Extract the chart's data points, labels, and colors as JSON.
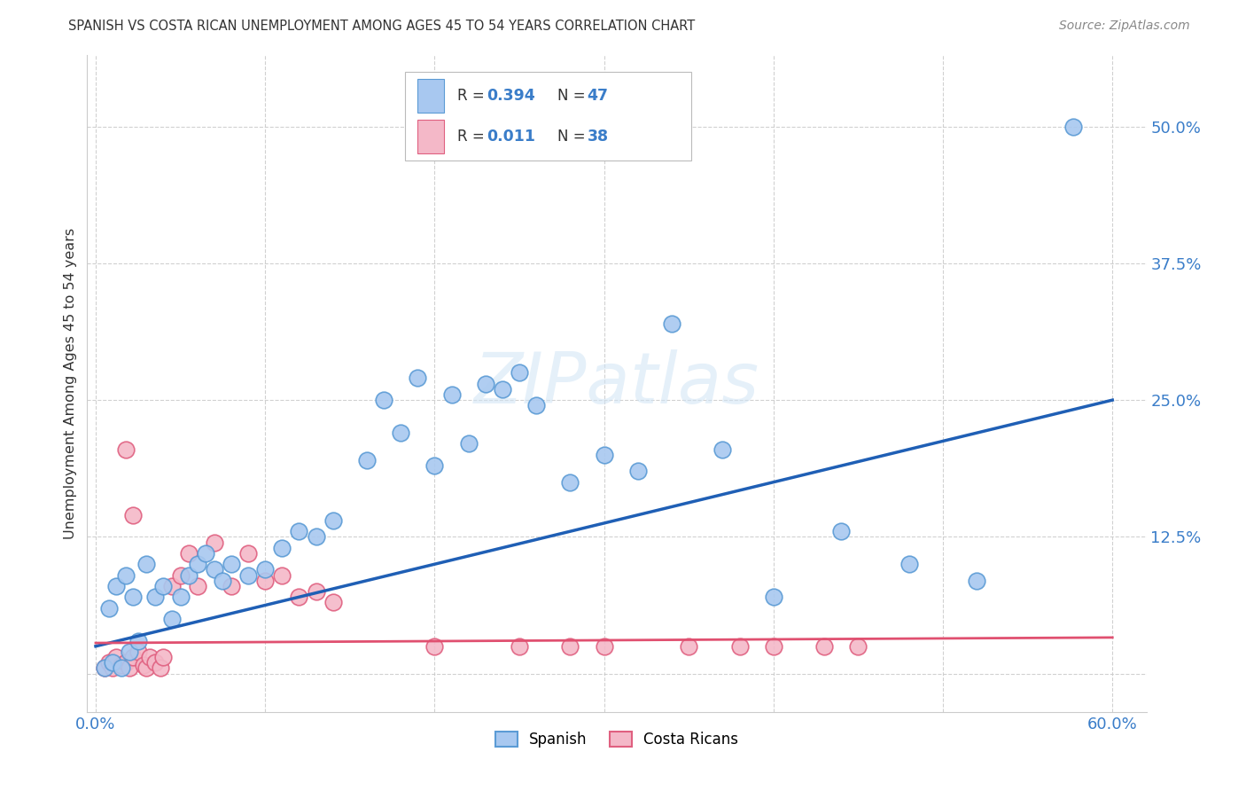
{
  "title": "SPANISH VS COSTA RICAN UNEMPLOYMENT AMONG AGES 45 TO 54 YEARS CORRELATION CHART",
  "source": "Source: ZipAtlas.com",
  "ylabel": "Unemployment Among Ages 45 to 54 years",
  "xlim": [
    -0.005,
    0.62
  ],
  "ylim": [
    -0.035,
    0.565
  ],
  "xticks": [
    0.0,
    0.1,
    0.2,
    0.3,
    0.4,
    0.5,
    0.6
  ],
  "xticklabels": [
    "0.0%",
    "",
    "",
    "",
    "",
    "",
    "60.0%"
  ],
  "ytick_positions": [
    0.0,
    0.125,
    0.25,
    0.375,
    0.5
  ],
  "ytick_labels": [
    "",
    "12.5%",
    "25.0%",
    "37.5%",
    "50.0%"
  ],
  "spanish_color": "#a8c8f0",
  "spanish_edge": "#5b9bd5",
  "costa_rican_color": "#f4b8c8",
  "costa_rican_edge": "#e06080",
  "trend_spanish_color": "#1f5fb5",
  "trend_cr_color": "#e05070",
  "legend_R_spanish": "0.394",
  "legend_N_spanish": "47",
  "legend_R_cr": "0.011",
  "legend_N_cr": "38",
  "sp_x": [
    0.577,
    0.005,
    0.01,
    0.015,
    0.02,
    0.025,
    0.008,
    0.012,
    0.018,
    0.022,
    0.03,
    0.035,
    0.04,
    0.045,
    0.05,
    0.055,
    0.06,
    0.065,
    0.07,
    0.075,
    0.08,
    0.09,
    0.1,
    0.11,
    0.12,
    0.13,
    0.14,
    0.16,
    0.18,
    0.2,
    0.22,
    0.24,
    0.26,
    0.28,
    0.3,
    0.32,
    0.34,
    0.37,
    0.4,
    0.44,
    0.48,
    0.52,
    0.17,
    0.19,
    0.21,
    0.23,
    0.25
  ],
  "sp_y": [
    0.5,
    0.005,
    0.01,
    0.005,
    0.02,
    0.03,
    0.06,
    0.08,
    0.09,
    0.07,
    0.1,
    0.07,
    0.08,
    0.05,
    0.07,
    0.09,
    0.1,
    0.11,
    0.095,
    0.085,
    0.1,
    0.09,
    0.095,
    0.115,
    0.13,
    0.125,
    0.14,
    0.195,
    0.22,
    0.19,
    0.21,
    0.26,
    0.245,
    0.175,
    0.2,
    0.185,
    0.32,
    0.205,
    0.07,
    0.13,
    0.1,
    0.085,
    0.25,
    0.27,
    0.255,
    0.265,
    0.275
  ],
  "cr_x": [
    0.005,
    0.008,
    0.01,
    0.012,
    0.015,
    0.018,
    0.02,
    0.022,
    0.025,
    0.028,
    0.03,
    0.032,
    0.035,
    0.038,
    0.04,
    0.045,
    0.05,
    0.055,
    0.06,
    0.07,
    0.08,
    0.09,
    0.1,
    0.11,
    0.12,
    0.13,
    0.14,
    0.018,
    0.022,
    0.28,
    0.4,
    0.45,
    0.43,
    0.38,
    0.35,
    0.3,
    0.25,
    0.2
  ],
  "cr_y": [
    0.005,
    0.01,
    0.005,
    0.015,
    0.008,
    0.01,
    0.005,
    0.015,
    0.02,
    0.008,
    0.005,
    0.015,
    0.01,
    0.005,
    0.015,
    0.08,
    0.09,
    0.11,
    0.08,
    0.12,
    0.08,
    0.11,
    0.085,
    0.09,
    0.07,
    0.075,
    0.065,
    0.205,
    0.145,
    0.025,
    0.025,
    0.025,
    0.025,
    0.025,
    0.025,
    0.025,
    0.025,
    0.025
  ],
  "background_color": "#ffffff",
  "grid_color": "#cccccc",
  "watermark": "ZIPatlas"
}
